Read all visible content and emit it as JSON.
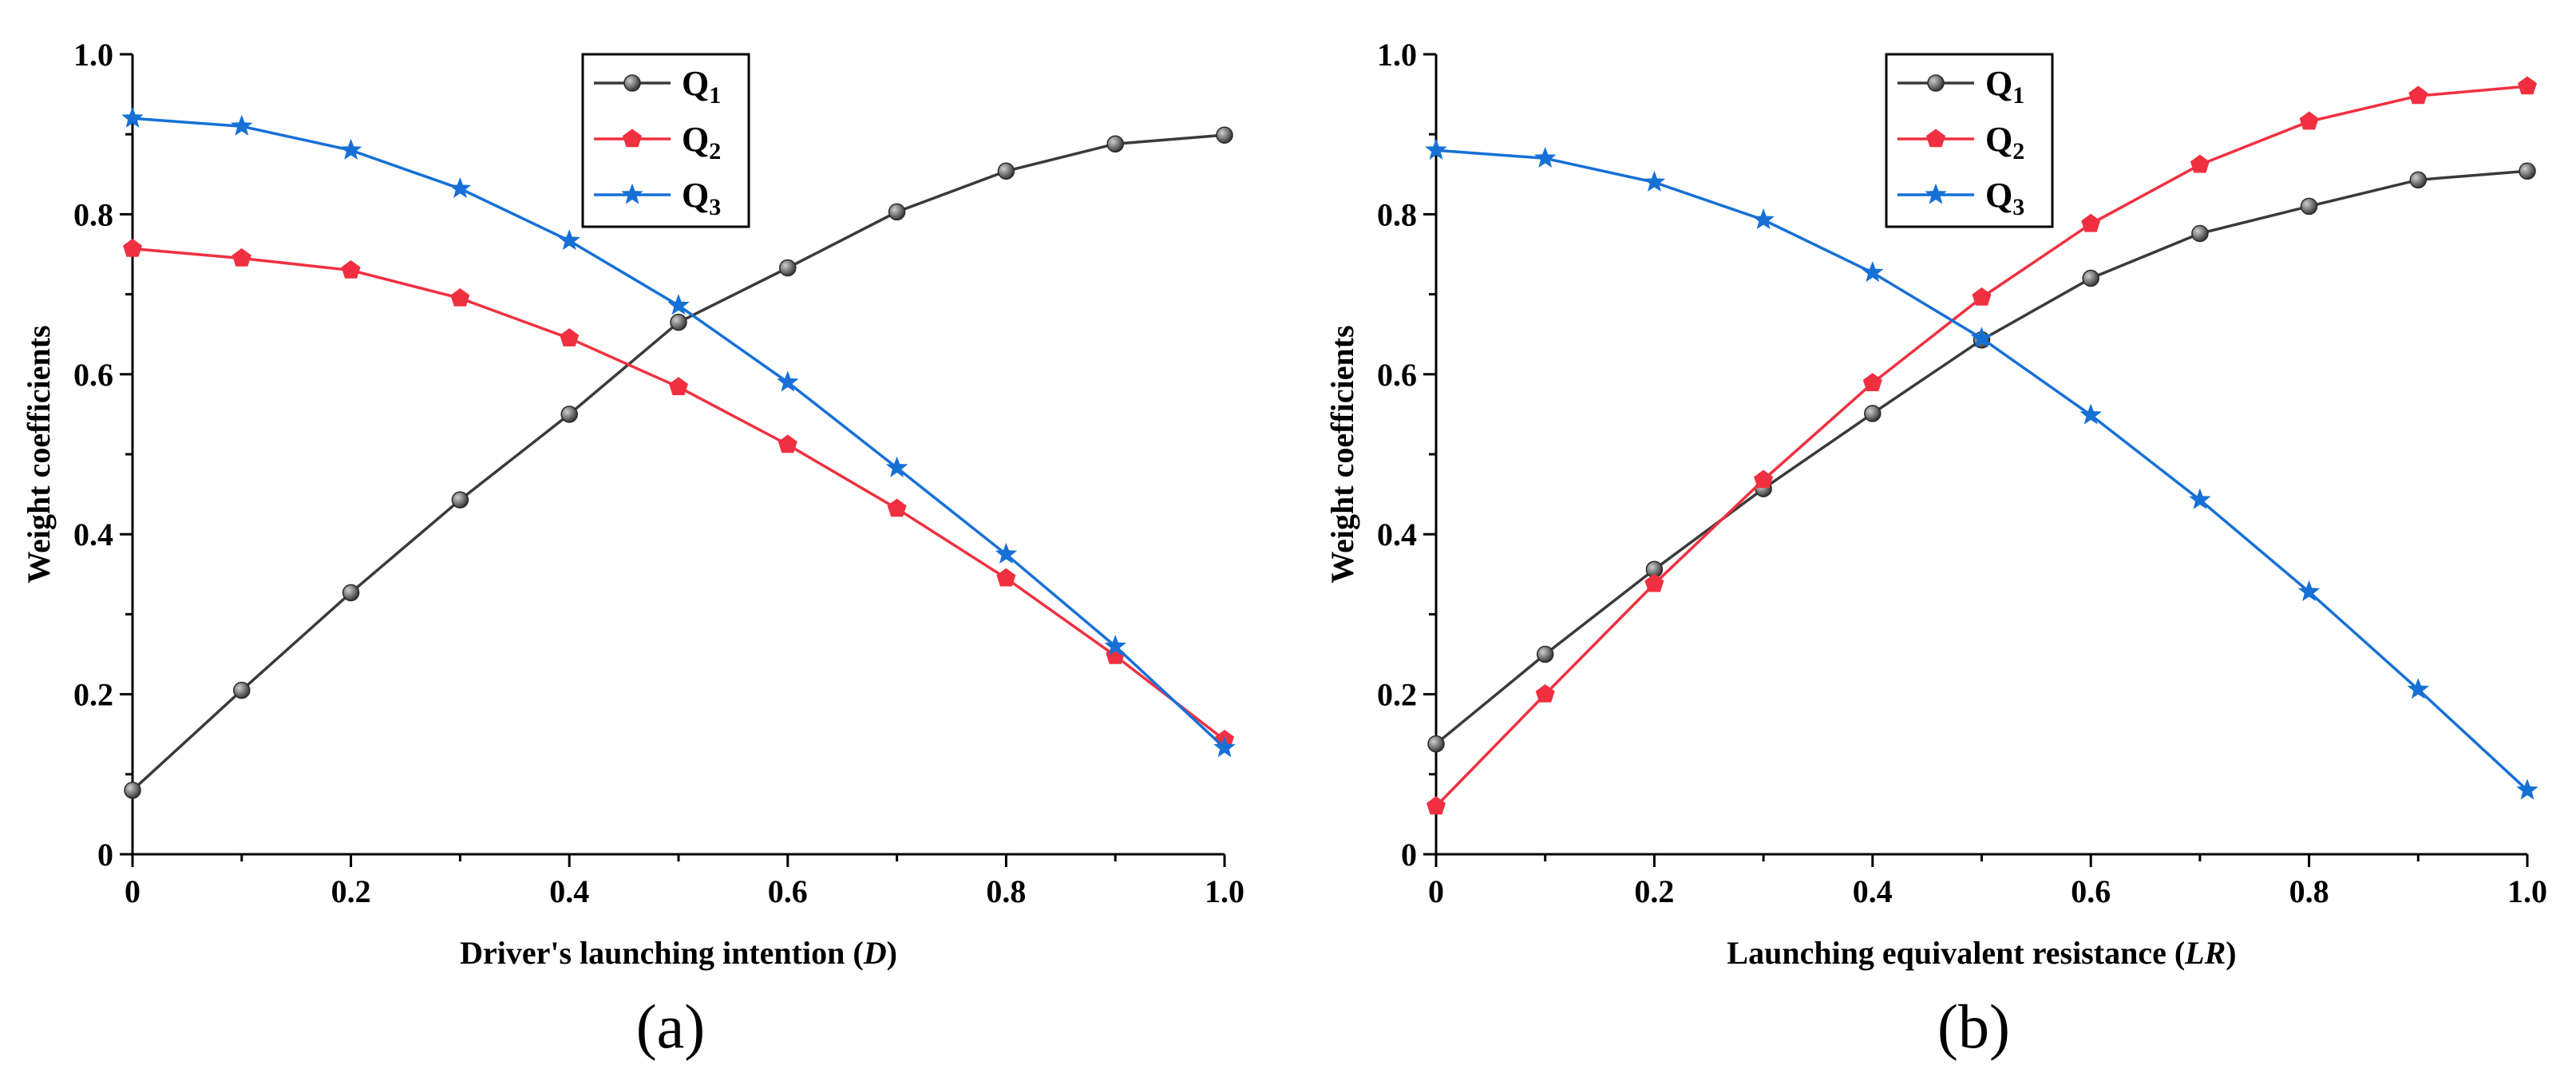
{
  "chart_data": [
    {
      "type": "line",
      "panel_label": "(a)",
      "xlabel": "Driver's launching intention",
      "xlabel_symbol": "D",
      "ylabel": "Weight coefficients",
      "xlim": [
        0,
        1.0
      ],
      "ylim": [
        0,
        1.0
      ],
      "xticks": [
        "0",
        "0.2",
        "0.4",
        "0.6",
        "0.8",
        "1.0"
      ],
      "yticks": [
        "0",
        "0.2",
        "0.4",
        "0.6",
        "0.8",
        "1.0"
      ],
      "legend_position": "top-center",
      "x": [
        0,
        0.1,
        0.2,
        0.3,
        0.4,
        0.5,
        0.6,
        0.7,
        0.8,
        0.9,
        1.0
      ],
      "series": [
        {
          "name": "Q",
          "subscript": "1",
          "color": "#3a3a3a",
          "marker": "circle",
          "values": [
            0.08,
            0.205,
            0.327,
            0.443,
            0.55,
            0.665,
            0.733,
            0.803,
            0.854,
            0.888,
            0.899
          ]
        },
        {
          "name": "Q",
          "subscript": "2",
          "color": "#f03040",
          "marker": "pentagon",
          "values": [
            0.757,
            0.745,
            0.73,
            0.695,
            0.645,
            0.584,
            0.512,
            0.432,
            0.345,
            0.248,
            0.143
          ]
        },
        {
          "name": "Q",
          "subscript": "3",
          "color": "#1670d6",
          "marker": "star",
          "values": [
            0.92,
            0.91,
            0.88,
            0.832,
            0.767,
            0.686,
            0.59,
            0.483,
            0.375,
            0.26,
            0.133
          ]
        }
      ]
    },
    {
      "type": "line",
      "panel_label": "(b)",
      "xlabel": "Launching equivalent resistance",
      "xlabel_symbol": "LR",
      "ylabel": "Weight coefficients",
      "xlim": [
        0,
        1.0
      ],
      "ylim": [
        0,
        1.0
      ],
      "xticks": [
        "0",
        "0.2",
        "0.4",
        "0.6",
        "0.8",
        "1.0"
      ],
      "yticks": [
        "0",
        "0.2",
        "0.4",
        "0.6",
        "0.8",
        "1.0"
      ],
      "legend_position": "top-center",
      "x": [
        0,
        0.1,
        0.2,
        0.3,
        0.4,
        0.5,
        0.6,
        0.7,
        0.8,
        0.9,
        1.0
      ],
      "series": [
        {
          "name": "Q",
          "subscript": "1",
          "color": "#3a3a3a",
          "marker": "circle",
          "values": [
            0.138,
            0.25,
            0.356,
            0.457,
            0.551,
            0.643,
            0.72,
            0.776,
            0.81,
            0.843,
            0.854
          ]
        },
        {
          "name": "Q",
          "subscript": "2",
          "color": "#f03040",
          "marker": "pentagon",
          "values": [
            0.06,
            0.2,
            0.338,
            0.468,
            0.589,
            0.696,
            0.788,
            0.862,
            0.916,
            0.948,
            0.96
          ]
        },
        {
          "name": "Q",
          "subscript": "3",
          "color": "#1670d6",
          "marker": "star",
          "values": [
            0.88,
            0.87,
            0.84,
            0.793,
            0.727,
            0.645,
            0.549,
            0.443,
            0.328,
            0.206,
            0.08
          ]
        }
      ]
    }
  ]
}
